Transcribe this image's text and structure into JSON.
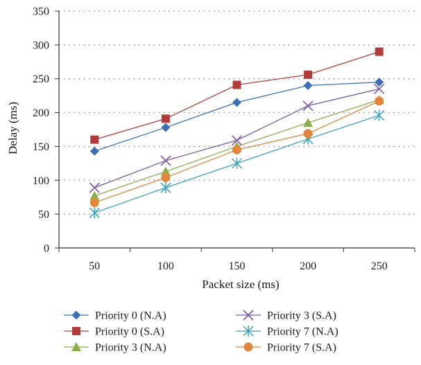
{
  "chart_data": {
    "type": "line",
    "xlabel": "Packet size (ms)",
    "ylabel": "Delay (ms)",
    "categories": [
      "50",
      "100",
      "150",
      "200",
      "250"
    ],
    "ylim": [
      0,
      350
    ],
    "yticks": [
      "0",
      "50",
      "100",
      "150",
      "200",
      "250",
      "300",
      "350"
    ],
    "grid": "horizontal dotted",
    "legend_position": "bottom",
    "series": [
      {
        "name": "Priority 0 (N.A)",
        "marker": "diamond",
        "color": "#3e6fb0",
        "values": [
          143,
          178,
          215,
          240,
          245
        ]
      },
      {
        "name": "Priority 0 (S.A)",
        "marker": "square",
        "color": "#b23b3b",
        "values": [
          160,
          191,
          241,
          256,
          290
        ]
      },
      {
        "name": "Priority 3 (N.A)",
        "marker": "triangle",
        "color": "#8cad4c",
        "values": [
          77,
          113,
          150,
          185,
          219
        ]
      },
      {
        "name": "Priority 3 (S.A)",
        "marker": "x",
        "color": "#7a56a0",
        "values": [
          89,
          129,
          159,
          210,
          235
        ]
      },
      {
        "name": "Priority 7 (N.A)",
        "marker": "star",
        "color": "#3aa0b8",
        "values": [
          52,
          89,
          125,
          161,
          196
        ]
      },
      {
        "name": "Priority 7 (S.A)",
        "marker": "circle",
        "color": "#e0863d",
        "values": [
          67,
          104,
          145,
          169,
          217
        ]
      }
    ]
  }
}
